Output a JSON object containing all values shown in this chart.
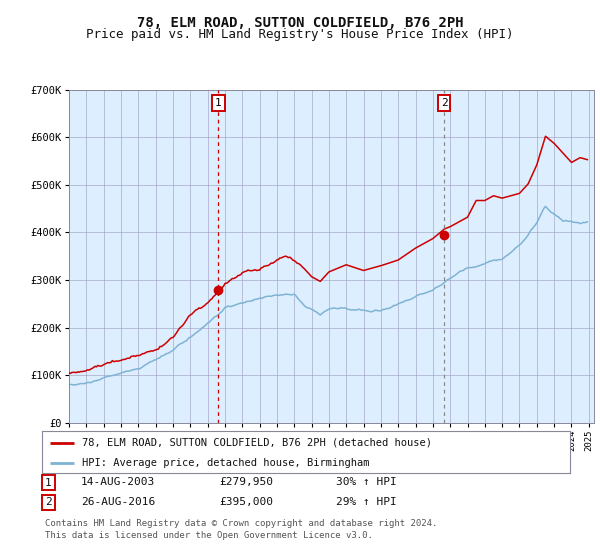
{
  "title": "78, ELM ROAD, SUTTON COLDFIELD, B76 2PH",
  "subtitle": "Price paid vs. HM Land Registry's House Price Index (HPI)",
  "ylim": [
    0,
    700000
  ],
  "yticks": [
    0,
    100000,
    200000,
    300000,
    400000,
    500000,
    600000,
    700000
  ],
  "ytick_labels": [
    "£0",
    "£100K",
    "£200K",
    "£300K",
    "£400K",
    "£500K",
    "£600K",
    "£700K"
  ],
  "background_color": "#ffffff",
  "plot_bg_color": "#ddeeff",
  "grid_color": "#9999bb",
  "red_line_color": "#cc0000",
  "blue_line_color": "#7fb3d3",
  "sale1_year": 2003.62,
  "sale1_value": 279950,
  "sale2_year": 2016.65,
  "sale2_value": 395000,
  "legend1": "78, ELM ROAD, SUTTON COLDFIELD, B76 2PH (detached house)",
  "legend2": "HPI: Average price, detached house, Birmingham",
  "table_row1": [
    "1",
    "14-AUG-2003",
    "£279,950",
    "30% ↑ HPI"
  ],
  "table_row2": [
    "2",
    "26-AUG-2016",
    "£395,000",
    "29% ↑ HPI"
  ],
  "footnote1": "Contains HM Land Registry data © Crown copyright and database right 2024.",
  "footnote2": "This data is licensed under the Open Government Licence v3.0.",
  "title_fontsize": 10,
  "subtitle_fontsize": 9,
  "tick_fontsize": 7.5,
  "legend_fontsize": 8
}
